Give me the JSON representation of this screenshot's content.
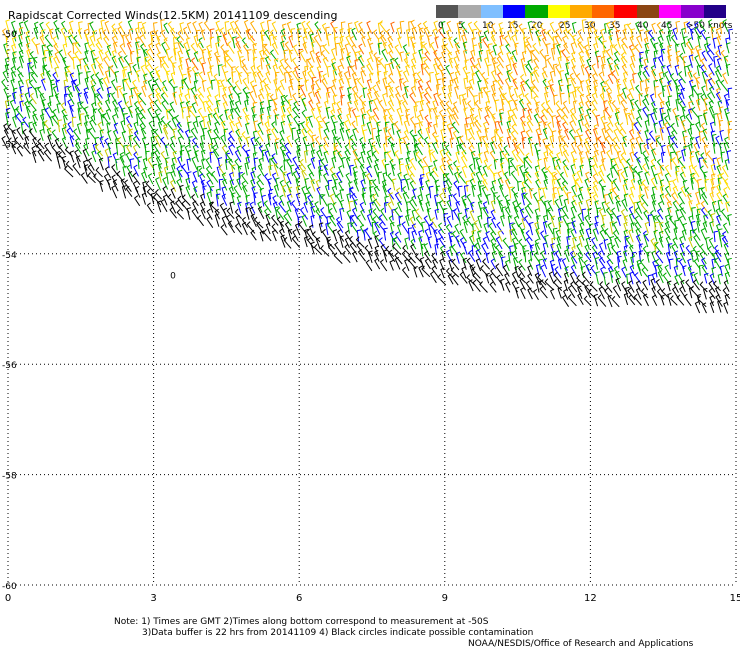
{
  "title": "Rapidscat Corrected Winds(12.5KM) 20141109 descending",
  "colorbar": {
    "labels": [
      "0",
      "5",
      "10",
      "15",
      "20",
      "25",
      "30",
      "35",
      "40",
      "45",
      ">50 knots"
    ],
    "colors": [
      "#555555",
      "#aaaaaa",
      "#7fbfff",
      "#0000ff",
      "#00aa00",
      "#ffff00",
      "#ffaa00",
      "#ff6600",
      "#ff0000",
      "#8b4513",
      "#ff00ff",
      "#8800cc",
      "#220088"
    ]
  },
  "chart_data": {
    "type": "wind-barb-map",
    "title": "Rapidscat Corrected Winds(12.5KM) 20141109 descending",
    "x_ticks": [
      "0",
      "3",
      "6",
      "9",
      "12",
      "15"
    ],
    "y_ticks": [
      "-50",
      "-52",
      "-54",
      "-56",
      "-58",
      "-60"
    ],
    "xlim": [
      0,
      15
    ],
    "ylim": [
      -60,
      -50
    ],
    "grid": true,
    "swath_southern_edge": [
      {
        "lon": 0.0,
        "lat": -52.2
      },
      {
        "lon": 1.0,
        "lat": -52.5
      },
      {
        "lon": 3.0,
        "lat": -53.3
      },
      {
        "lon": 6.0,
        "lat": -54.0
      },
      {
        "lon": 9.0,
        "lat": -54.6
      },
      {
        "lon": 11.0,
        "lat": -54.9
      },
      {
        "lon": 12.0,
        "lat": -55.0
      },
      {
        "lon": 13.5,
        "lat": -55.05
      },
      {
        "lon": 15.0,
        "lat": -55.1
      }
    ],
    "speed_regions": [
      {
        "region": "north",
        "speed_knots": "20-30",
        "color": "yellow-orange"
      },
      {
        "region": "central band",
        "speed_knots": "15-20",
        "color": "green"
      },
      {
        "region": "southern edge",
        "speed_knots": "10-15",
        "color": "blue"
      },
      {
        "region": "swath edge",
        "speed_knots": "possible contamination",
        "color": "black"
      }
    ],
    "annotations": [
      {
        "text": "0",
        "lon": 3.4,
        "lat": -54.45
      }
    ]
  },
  "notes": {
    "line1": "Note: 1) Times are GMT 2)Times along bottom correspond to measurement at -50S",
    "line2": "3)Data buffer is 22 hrs from 20141109 4) Black circles indicate possible contamination",
    "line3": "NOAA/NESDIS/Office of Research and Applications"
  }
}
